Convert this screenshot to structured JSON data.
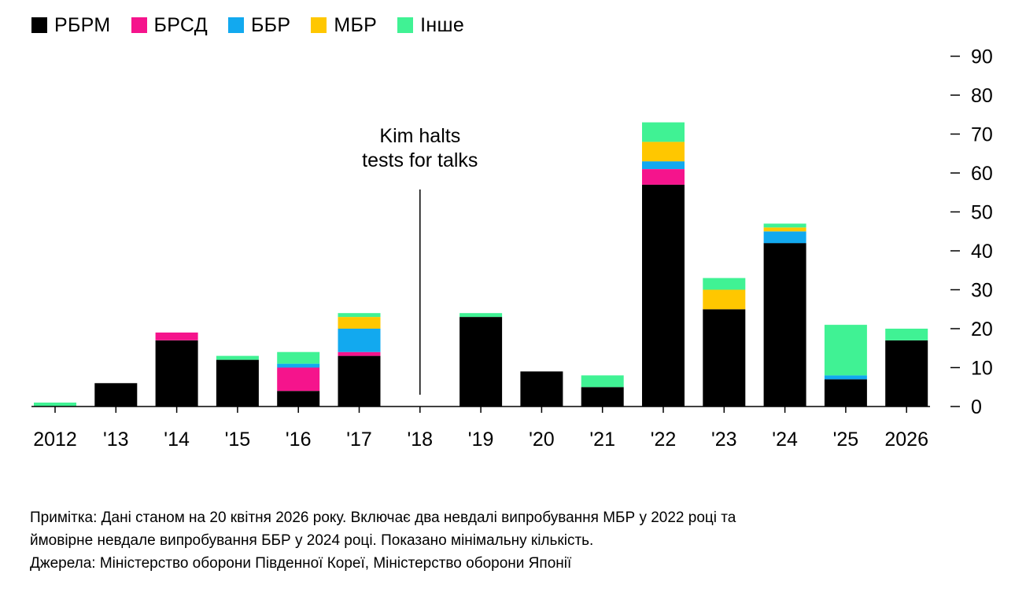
{
  "chart_data": {
    "type": "bar",
    "stacked": true,
    "categories": [
      "2012",
      "'13",
      "'14",
      "'15",
      "'16",
      "'17",
      "'18",
      "'19",
      "'20",
      "'21",
      "'22",
      "'23",
      "'24",
      "'25",
      "2026"
    ],
    "series": [
      {
        "name": "РБРМ",
        "color": "#000000",
        "values": [
          0,
          6,
          17,
          12,
          4,
          13,
          0,
          23,
          9,
          5,
          57,
          25,
          42,
          7,
          17
        ]
      },
      {
        "name": "БРСД",
        "color": "#f5148c",
        "values": [
          0,
          0,
          2,
          0,
          6,
          1,
          0,
          0,
          0,
          0,
          4,
          0,
          0,
          0,
          0
        ]
      },
      {
        "name": "ББР",
        "color": "#12a9ef",
        "values": [
          0,
          0,
          0,
          0,
          1,
          6,
          0,
          0,
          0,
          0,
          2,
          0,
          3,
          1,
          0
        ]
      },
      {
        "name": "МБР",
        "color": "#ffc700",
        "values": [
          0,
          0,
          0,
          0,
          0,
          3,
          0,
          0,
          0,
          0,
          5,
          5,
          1,
          0,
          0
        ]
      },
      {
        "name": "Інше",
        "color": "#40f294",
        "values": [
          1,
          0,
          0,
          1,
          3,
          1,
          0,
          1,
          0,
          3,
          5,
          3,
          1,
          13,
          3
        ]
      }
    ],
    "ylim": [
      0,
      90
    ],
    "yticks": [
      0,
      10,
      20,
      30,
      40,
      50,
      60,
      70,
      80,
      90
    ],
    "yaxis_side": "right",
    "annotation": {
      "text_lines": [
        "Kim halts",
        "tests for talks"
      ],
      "category": "'18"
    },
    "legend_position": "top-left"
  },
  "notes": {
    "line1": "Примітка: Дані станом на 20 квітня 2026 року. Включає два невдалі випробування МБР у 2022 році та",
    "line2": "ймовірне невдале випробування ББР у 2024 році. Показано мінімальну кількість.",
    "line3": "Джерела: Міністерство оборони Південної Кореї, Міністерство оборони Японії"
  }
}
